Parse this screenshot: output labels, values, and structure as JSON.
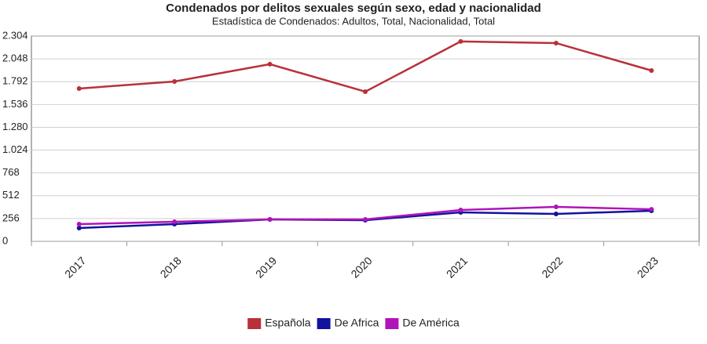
{
  "chart_data": {
    "type": "line",
    "title": "Condenados por delitos sexuales según sexo, edad y nacionalidad",
    "subtitle": "Estadística de Condenados: Adultos, Total, Nacionalidad, Total",
    "categories": [
      "2017",
      "2018",
      "2019",
      "2020",
      "2021",
      "2022",
      "2023"
    ],
    "series": [
      {
        "name": "Española",
        "color": "#b8313a",
        "values": [
          1715,
          1794,
          1988,
          1680,
          2243,
          2225,
          1917
        ]
      },
      {
        "name": "De Africa",
        "color": "#1212a0",
        "values": [
          150,
          193,
          246,
          237,
          325,
          308,
          343
        ]
      },
      {
        "name": "De América",
        "color": "#b014b8",
        "values": [
          193,
          220,
          246,
          246,
          352,
          387,
          360
        ]
      }
    ],
    "ylim": [
      0,
      2304
    ],
    "yticks": [
      0,
      256,
      512,
      768,
      {
        "value": 1024,
        "label": "1.024"
      },
      {
        "value": 1280,
        "label": "1.280"
      },
      {
        "value": 1536,
        "label": "1.536"
      },
      {
        "value": 1792,
        "label": "1.792"
      },
      {
        "value": 2048,
        "label": "2.048"
      },
      {
        "value": 2304,
        "label": "2.304"
      }
    ],
    "grid": true
  }
}
